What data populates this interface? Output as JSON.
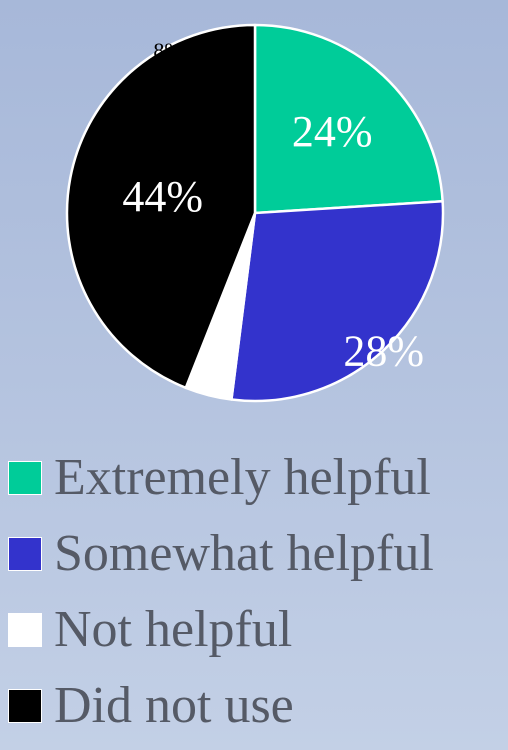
{
  "chart_data": {
    "type": "pie",
    "title": "",
    "categories": [
      "Extremely helpful",
      "Somewhat helpful",
      "Not helpful",
      "Did not use"
    ],
    "values": [
      24,
      28,
      4,
      44
    ],
    "data_labels": [
      "24%",
      "28%",
      "",
      "44%"
    ],
    "colors": [
      "#00cc99",
      "#3333cc",
      "#ffffff",
      "#000000"
    ],
    "legend_position": "bottom"
  },
  "partial_label": "8%"
}
